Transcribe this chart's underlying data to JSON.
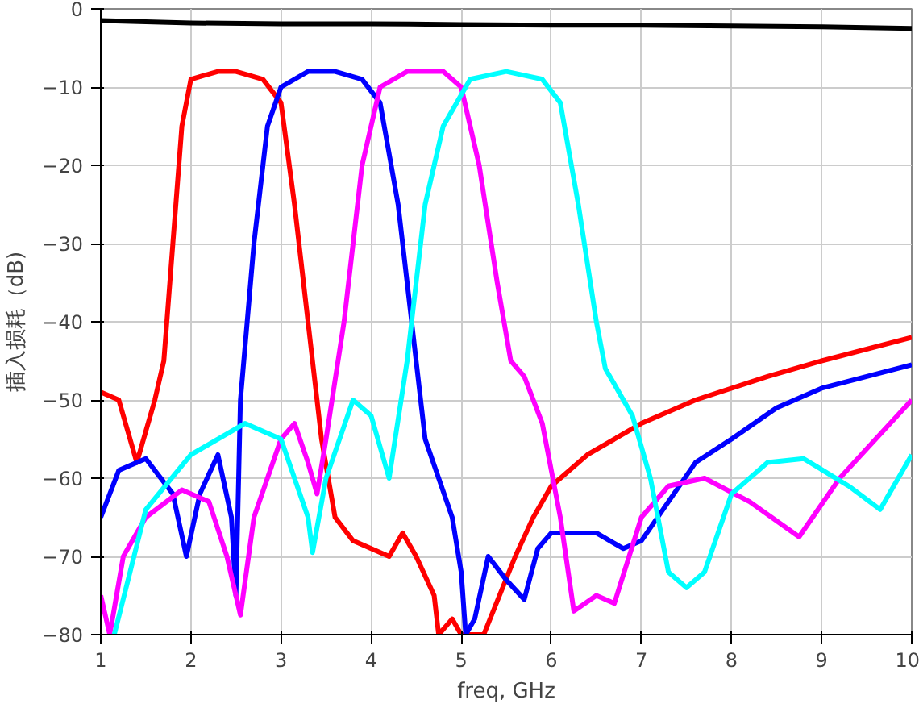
{
  "chart_data": {
    "type": "line",
    "xlabel": "freq, GHz",
    "ylabel": "插入损耗（dB)",
    "xlim": [
      1,
      10
    ],
    "ylim": [
      -80,
      0
    ],
    "xticks": [
      1,
      2,
      3,
      4,
      5,
      6,
      7,
      8,
      9,
      10
    ],
    "yticks": [
      0,
      -10,
      -20,
      -30,
      -40,
      -50,
      -60,
      -70,
      -80
    ],
    "grid": true,
    "marker": "none",
    "line_style": "solid",
    "series": [
      {
        "color": "#000000",
        "x": [
          1,
          2,
          3,
          4,
          5,
          6,
          7,
          8,
          9,
          10
        ],
        "values": [
          -1.5,
          -1.8,
          -1.9,
          -1.9,
          -2.0,
          -2.1,
          -2.1,
          -2.2,
          -2.3,
          -2.5
        ]
      },
      {
        "color": "#ff0000",
        "x": [
          1,
          1.2,
          1.4,
          1.6,
          1.7,
          1.8,
          1.9,
          2.0,
          2.3,
          2.5,
          2.8,
          3.0,
          3.15,
          3.3,
          3.45,
          3.6,
          3.8,
          4.0,
          4.2,
          4.35,
          4.5,
          4.7,
          4.75,
          4.9,
          5.0,
          5.25,
          5.6,
          5.8,
          6.0,
          6.4,
          7,
          7.6,
          8.4,
          9,
          10
        ],
        "values": [
          -49,
          -50,
          -58,
          -50,
          -45,
          -30,
          -15,
          -9,
          -8,
          -8,
          -9,
          -12,
          -25,
          -40,
          -55,
          -65,
          -68,
          -69,
          -70,
          -67,
          -70,
          -75,
          -80,
          -78,
          -80,
          -80,
          -70,
          -65,
          -61,
          -57,
          -53,
          -50,
          -47,
          -45,
          -42
        ]
      },
      {
        "color": "#0000ff",
        "x": [
          1,
          1.2,
          1.5,
          1.8,
          1.95,
          2.1,
          2.3,
          2.45,
          2.5,
          2.55,
          2.7,
          2.85,
          3.0,
          3.3,
          3.6,
          3.9,
          4.1,
          4.3,
          4.45,
          4.6,
          4.75,
          4.9,
          5.0,
          5.05,
          5.15,
          5.3,
          5.5,
          5.7,
          5.85,
          6.0,
          6.5,
          6.8,
          7.0,
          7.3,
          7.6,
          8,
          8.5,
          9,
          10
        ],
        "values": [
          -65,
          -59,
          -57.5,
          -62,
          -70,
          -62,
          -57,
          -65,
          -75,
          -50,
          -30,
          -15,
          -10,
          -8,
          -8,
          -9,
          -12,
          -25,
          -40,
          -55,
          -60,
          -65,
          -72,
          -80,
          -78,
          -70,
          -73,
          -75.5,
          -69,
          -67,
          -67,
          -69,
          -68,
          -63,
          -58,
          -55,
          -51,
          -48.5,
          -45.5
        ]
      },
      {
        "color": "#ff00ff",
        "x": [
          1.0,
          1.1,
          1.25,
          1.5,
          1.9,
          2.2,
          2.4,
          2.55,
          2.7,
          3.0,
          3.15,
          3.3,
          3.4,
          3.5,
          3.7,
          3.9,
          4.1,
          4.4,
          4.8,
          5.0,
          5.2,
          5.4,
          5.55,
          5.7,
          5.9,
          6.1,
          6.25,
          6.5,
          6.7,
          7.0,
          7.3,
          7.7,
          8.2,
          8.75,
          9.2,
          10
        ],
        "values": [
          -75,
          -80,
          -70,
          -65,
          -61.5,
          -63,
          -70,
          -77.5,
          -65,
          -55,
          -53,
          -58,
          -62,
          -55,
          -40,
          -20,
          -10,
          -8,
          -8,
          -10,
          -20,
          -35,
          -45,
          -47,
          -53,
          -65,
          -77,
          -75,
          -76,
          -65,
          -61,
          -60,
          -63,
          -67.5,
          -60,
          -50
        ]
      },
      {
        "color": "#00ffff",
        "x": [
          1.15,
          1.5,
          2.0,
          2.6,
          3.0,
          3.3,
          3.35,
          3.5,
          3.8,
          4.0,
          4.2,
          4.4,
          4.6,
          4.8,
          5.1,
          5.5,
          5.9,
          6.1,
          6.3,
          6.5,
          6.6,
          6.9,
          7.1,
          7.3,
          7.5,
          7.7,
          8.0,
          8.4,
          8.8,
          9.3,
          9.65,
          10
        ],
        "values": [
          -80,
          -64,
          -57,
          -53,
          -55,
          -65,
          -69.5,
          -60,
          -50,
          -52,
          -60,
          -45,
          -25,
          -15,
          -9,
          -8,
          -9,
          -12,
          -25,
          -40,
          -46,
          -52,
          -60,
          -72,
          -74,
          -72,
          -62,
          -58,
          -57.5,
          -61,
          -64,
          -57
        ]
      }
    ]
  }
}
